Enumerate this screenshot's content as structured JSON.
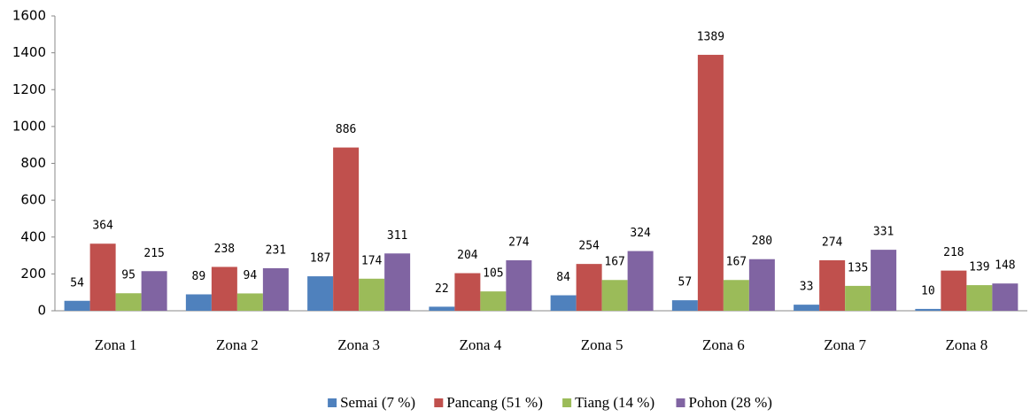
{
  "chart_data": {
    "type": "bar",
    "categories": [
      "Zona 1",
      "Zona 2",
      "Zona 3",
      "Zona 4",
      "Zona 5",
      "Zona 6",
      "Zona 7",
      "Zona 8"
    ],
    "series": [
      {
        "name": "Semai (7 %)",
        "color": "#4f81bd",
        "values": [
          54,
          89,
          187,
          22,
          84,
          57,
          33,
          10
        ]
      },
      {
        "name": "Pancang (51 %)",
        "color": "#c0504d",
        "values": [
          364,
          238,
          886,
          204,
          254,
          1389,
          274,
          218
        ]
      },
      {
        "name": "Tiang (14 %)",
        "color": "#9bbb59",
        "values": [
          95,
          94,
          174,
          105,
          167,
          167,
          135,
          139
        ]
      },
      {
        "name": "Pohon (28 %)",
        "color": "#8064a2",
        "values": [
          215,
          231,
          311,
          274,
          324,
          280,
          331,
          148
        ]
      }
    ],
    "ylim": [
      0,
      1600
    ],
    "yticks": [
      0,
      200,
      400,
      600,
      800,
      1000,
      1200,
      1400,
      1600
    ],
    "grid": false,
    "legend": "bottom"
  }
}
